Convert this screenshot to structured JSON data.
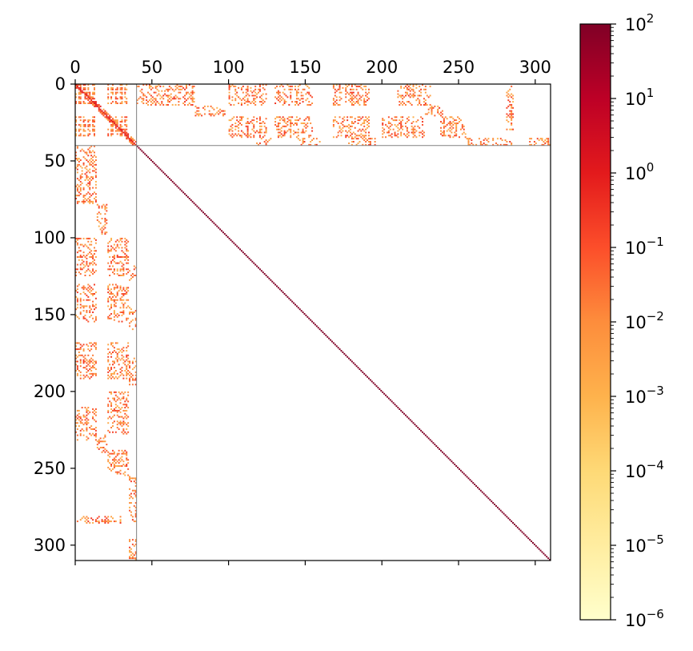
{
  "chart_data": {
    "type": "heatmap",
    "title": "",
    "xlabel": "",
    "ylabel": "",
    "matrix_size": 310,
    "x_axis": {
      "position": "top",
      "range": [
        0,
        310
      ],
      "ticks": [
        0,
        50,
        100,
        150,
        200,
        250,
        300
      ]
    },
    "y_axis": {
      "direction": "downward",
      "range": [
        0,
        310
      ],
      "ticks": [
        0,
        50,
        100,
        150,
        200,
        250,
        300
      ]
    },
    "x_tick_labels": [
      "0",
      "50",
      "100",
      "150",
      "200",
      "250",
      "300"
    ],
    "y_tick_labels": [
      "0",
      "50",
      "100",
      "150",
      "200",
      "250",
      "300"
    ],
    "block_partition": 40,
    "diagonal_value": 100,
    "off_diagonal_value_range": [
      0.001,
      0.3
    ],
    "top_left_block_blocks": [
      [
        0,
        0,
        14,
        14
      ],
      [
        21,
        0,
        35,
        14
      ],
      [
        0,
        21,
        14,
        35
      ],
      [
        21,
        21,
        35,
        35
      ]
    ],
    "coupling_blocks": [
      {
        "cols": [
          0,
          14
        ],
        "rows": [
          40,
          78
        ]
      },
      {
        "cols": [
          14,
          21
        ],
        "rows": [
          78,
          98
        ]
      },
      {
        "cols": [
          0,
          14
        ],
        "rows": [
          100,
          125
        ]
      },
      {
        "cols": [
          21,
          35
        ],
        "rows": [
          100,
          125
        ]
      },
      {
        "cols": [
          35,
          40
        ],
        "rows": [
          118,
          128
        ]
      },
      {
        "cols": [
          0,
          14
        ],
        "rows": [
          130,
          155
        ]
      },
      {
        "cols": [
          21,
          35
        ],
        "rows": [
          130,
          155
        ]
      },
      {
        "cols": [
          35,
          40
        ],
        "rows": [
          145,
          160
        ]
      },
      {
        "cols": [
          0,
          14
        ],
        "rows": [
          168,
          192
        ]
      },
      {
        "cols": [
          21,
          35
        ],
        "rows": [
          168,
          192
        ]
      },
      {
        "cols": [
          35,
          40
        ],
        "rows": [
          178,
          196
        ]
      },
      {
        "cols": [
          21,
          35
        ],
        "rows": [
          200,
          228
        ]
      },
      {
        "cols": [
          0,
          14
        ],
        "rows": [
          210,
          232
        ]
      },
      {
        "cols": [
          14,
          21
        ],
        "rows": [
          228,
          240
        ]
      },
      {
        "cols": [
          21,
          35
        ],
        "rows": [
          238,
          255
        ]
      },
      {
        "cols": [
          35,
          40
        ],
        "rows": [
          255,
          285
        ]
      },
      {
        "cols": [
          0,
          14
        ],
        "rows": [
          281,
          286
        ]
      },
      {
        "cols": [
          14,
          30
        ],
        "rows": [
          281,
          286
        ]
      },
      {
        "cols": [
          35,
          40
        ],
        "rows": [
          295,
          310
        ]
      }
    ],
    "colorbar": {
      "colormap": "YlOrRd",
      "scale": "log",
      "range": [
        1e-06,
        100
      ],
      "tick_labels": [
        {
          "base": "10",
          "exponent": "−6"
        },
        {
          "base": "10",
          "exponent": "−5"
        },
        {
          "base": "10",
          "exponent": "−4"
        },
        {
          "base": "10",
          "exponent": "−3"
        },
        {
          "base": "10",
          "exponent": "−2"
        },
        {
          "base": "10",
          "exponent": "−1"
        },
        {
          "base": "10",
          "exponent": "0"
        },
        {
          "base": "10",
          "exponent": "1"
        },
        {
          "base": "10",
          "exponent": "2"
        }
      ]
    },
    "partition_line_color": "#808080"
  }
}
